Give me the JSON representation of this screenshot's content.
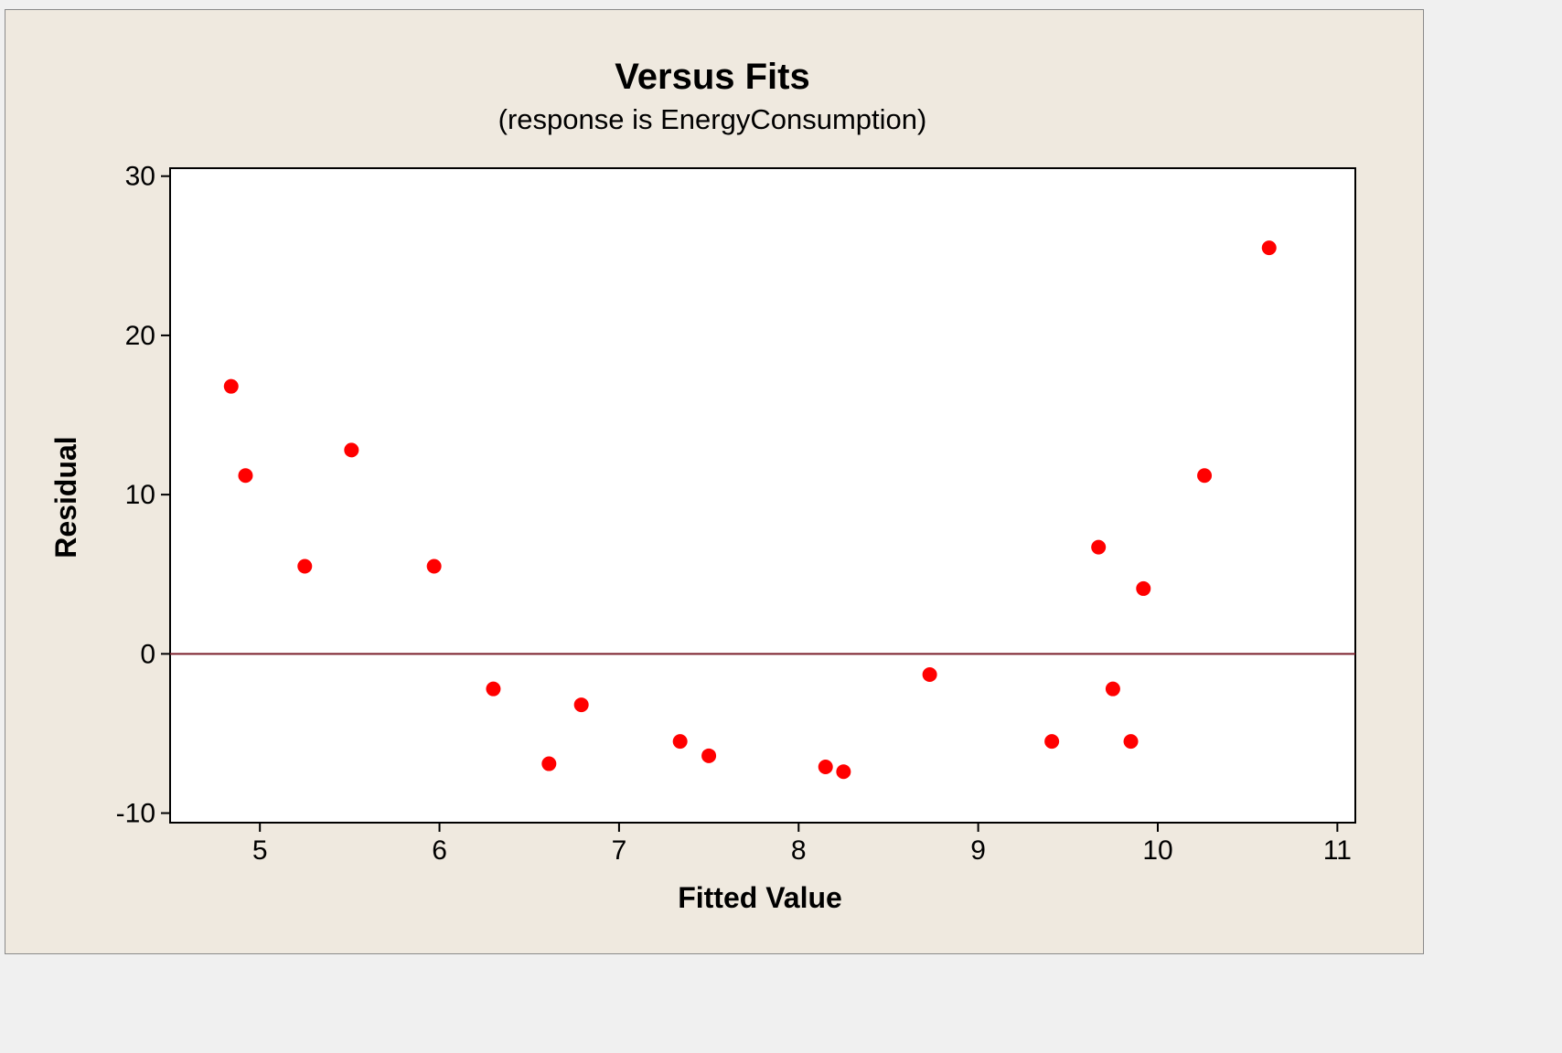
{
  "chart_data": {
    "type": "scatter",
    "title": "Versus Fits",
    "subtitle": "(response is EnergyConsumption)",
    "xlabel": "Fitted Value",
    "ylabel": "Residual",
    "xlim": [
      4.5,
      11.1
    ],
    "ylim": [
      -10.6,
      30.5
    ],
    "xticks": [
      5,
      6,
      7,
      8,
      9,
      10,
      11
    ],
    "yticks": [
      -10,
      0,
      10,
      20,
      30
    ],
    "xtick_labels": [
      "5",
      "6",
      "7",
      "8",
      "9",
      "10",
      "11"
    ],
    "ytick_labels": [
      "-10",
      "0",
      "10",
      "20",
      "30"
    ],
    "reference_line": 0,
    "grid": false,
    "point_color": "#ff0000",
    "reference_line_color": "#7a1f2b",
    "plot_background": "#ffffff",
    "frame_background": "#efe9df",
    "series": [
      {
        "x": [
          4.84,
          4.92,
          5.25,
          5.51,
          5.97,
          6.3,
          6.61,
          6.79,
          7.34,
          7.5,
          8.15,
          8.25,
          8.73,
          9.41,
          9.67,
          9.75,
          9.85,
          9.92,
          10.26,
          10.62
        ],
        "y": [
          16.8,
          11.2,
          5.5,
          12.8,
          5.5,
          -2.2,
          -6.9,
          -3.2,
          -5.5,
          -6.4,
          -7.1,
          -7.4,
          -1.3,
          -5.5,
          6.7,
          -2.2,
          -5.5,
          4.1,
          11.2,
          25.5
        ]
      }
    ]
  }
}
